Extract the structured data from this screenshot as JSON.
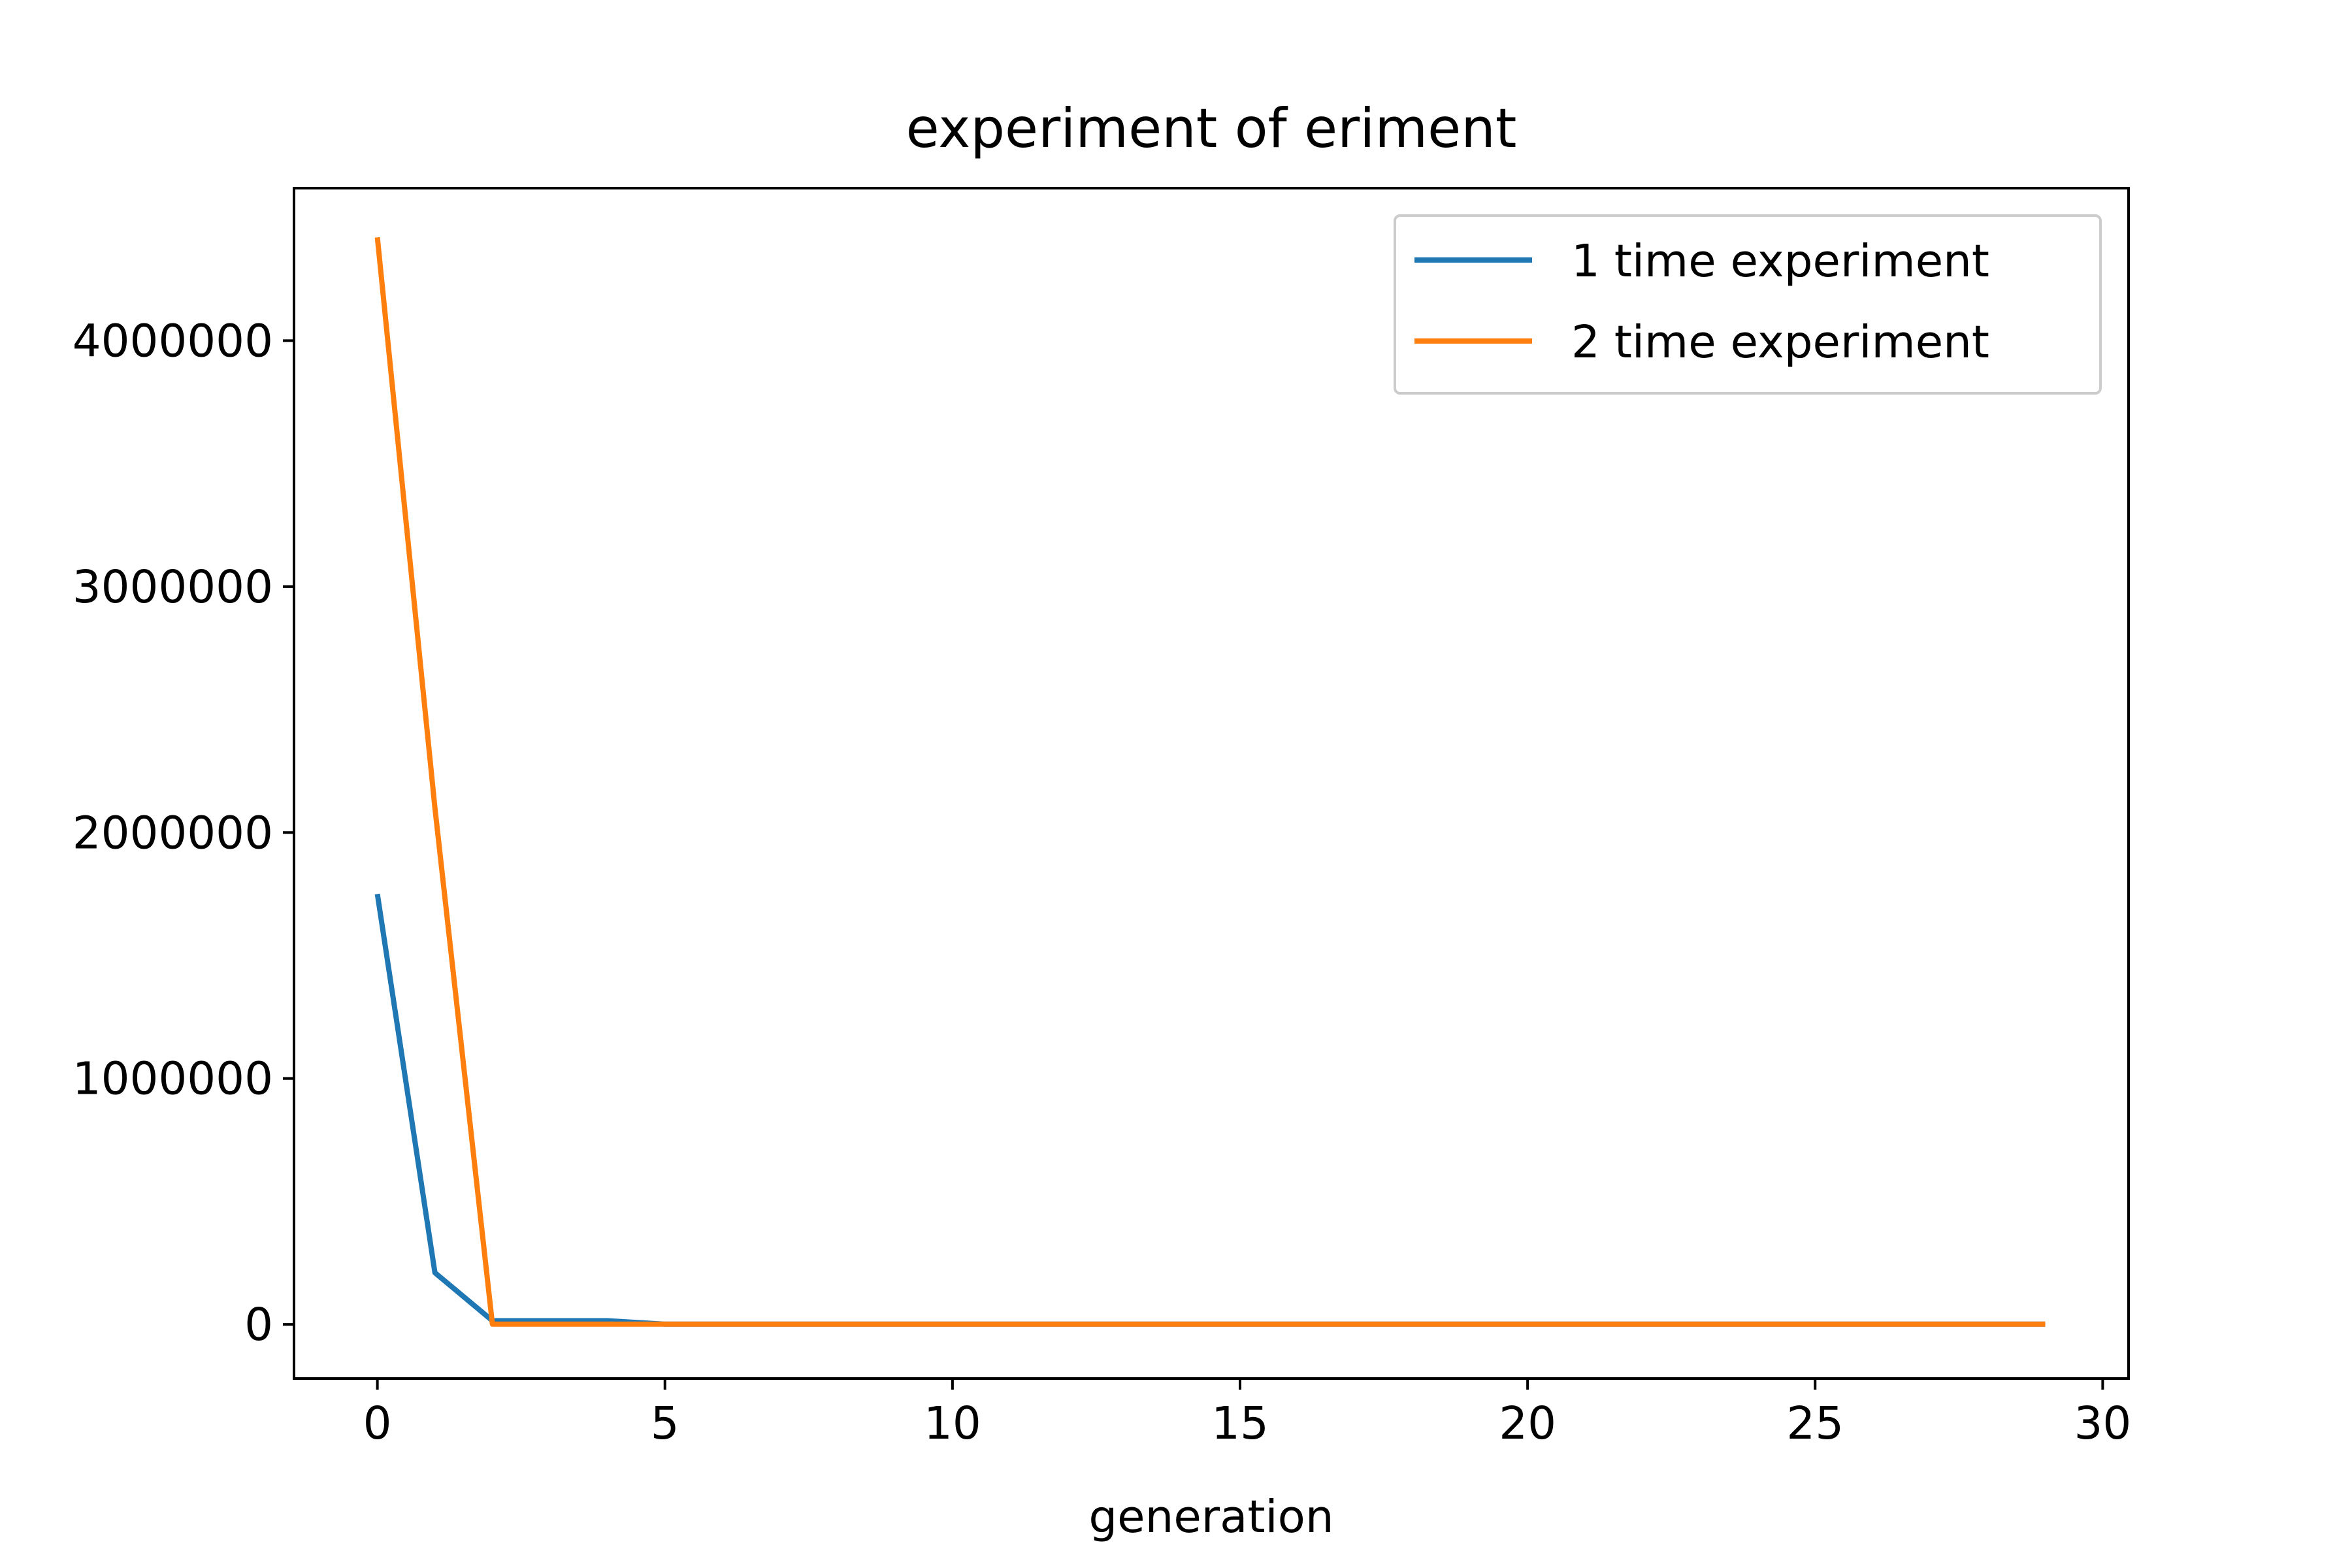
{
  "chart_data": {
    "type": "line",
    "title": "experiment of eriment",
    "xlabel": "generation",
    "ylabel": "",
    "xlim": [
      -1.45,
      30.45
    ],
    "ylim": [
      -220000,
      4620000
    ],
    "x_ticks": [
      0,
      5,
      10,
      15,
      20,
      25,
      30
    ],
    "y_ticks": [
      0,
      1000000,
      2000000,
      3000000,
      4000000
    ],
    "grid": false,
    "legend_position": "top-right",
    "x": [
      0,
      1,
      2,
      3,
      4,
      5,
      6,
      7,
      8,
      9,
      10,
      11,
      12,
      13,
      14,
      15,
      16,
      17,
      18,
      19,
      20,
      21,
      22,
      23,
      24,
      25,
      26,
      27,
      28,
      29
    ],
    "series": [
      {
        "name": "1 time experiment",
        "color": "#1f77b4",
        "values": [
          1750000,
          210000,
          15000,
          15000,
          15000,
          1000,
          1000,
          1000,
          1000,
          1000,
          1000,
          1000,
          1000,
          1000,
          1000,
          1000,
          1000,
          1000,
          1000,
          1000,
          1000,
          1000,
          1000,
          1000,
          1000,
          1000,
          1000,
          1000,
          1000,
          1000
        ]
      },
      {
        "name": "2 time experiment",
        "color": "#ff7f0e",
        "values": [
          4420000,
          2100000,
          1000,
          1000,
          1000,
          1000,
          1000,
          1000,
          1000,
          1000,
          1000,
          1000,
          1000,
          1000,
          1000,
          1000,
          1000,
          1000,
          1000,
          1000,
          1000,
          1000,
          1000,
          1000,
          1000,
          1000,
          1000,
          1000,
          1000,
          1000
        ]
      }
    ]
  }
}
